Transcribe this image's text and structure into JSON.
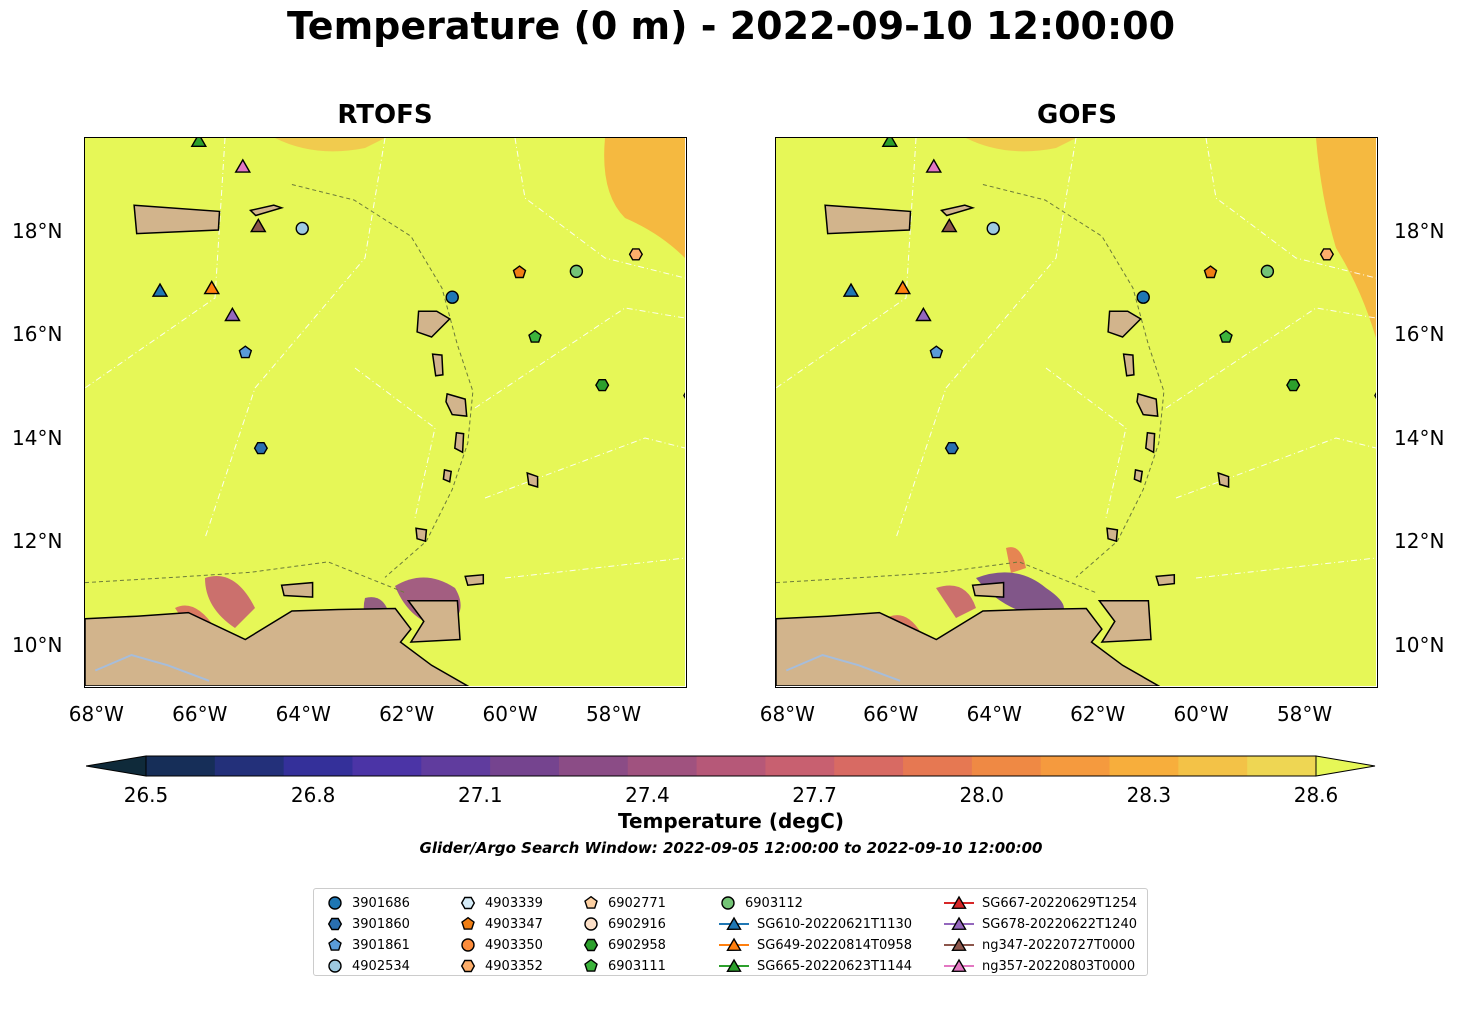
{
  "title": "Temperature (0 m) - 2022-09-10 12:00:00",
  "panels": [
    {
      "title": "RTOFS"
    },
    {
      "title": "GOFS"
    }
  ],
  "axes": {
    "x_ticks": [
      "68°W",
      "66°W",
      "64°W",
      "62°W",
      "60°W",
      "58°W"
    ],
    "y_ticks": [
      "18°N",
      "16°N",
      "14°N",
      "12°N",
      "10°N"
    ]
  },
  "colorbar": {
    "ticks": [
      "26.5",
      "26.8",
      "27.1",
      "27.4",
      "27.7",
      "28.0",
      "28.3",
      "28.6"
    ],
    "label": "Temperature (degC)",
    "colors": [
      "#0f2a3a",
      "#162e58",
      "#23307a",
      "#34309a",
      "#4b34a6",
      "#603c9e",
      "#75448f",
      "#8b4c86",
      "#a0527f",
      "#b65878",
      "#c86070",
      "#d86a63",
      "#e67852",
      "#ef8944",
      "#f59a3e",
      "#f7ae3c",
      "#f3c247",
      "#eed653",
      "#e6f757"
    ]
  },
  "search_window": "Glider/Argo Search Window: 2022-09-05 12:00:00 to 2022-09-10 12:00:00",
  "legend": [
    {
      "label": "3901686",
      "marker": "circle",
      "color": "#1f77b4"
    },
    {
      "label": "3901860",
      "marker": "hexagon",
      "color": "#2a6fb0"
    },
    {
      "label": "3901861",
      "marker": "pentagon",
      "color": "#5a9bd8"
    },
    {
      "label": "4902534",
      "marker": "circle",
      "color": "#9ecae1"
    },
    {
      "label": "4903339",
      "marker": "hexagon",
      "color": "#d6ecf8"
    },
    {
      "label": "4903347",
      "marker": "pentagon",
      "color": "#f07e14"
    },
    {
      "label": "4903350",
      "marker": "circle",
      "color": "#fd8d3c"
    },
    {
      "label": "4903352",
      "marker": "hexagon",
      "color": "#fdae6b"
    },
    {
      "label": "6902771",
      "marker": "pentagon",
      "color": "#fdd0a2"
    },
    {
      "label": "6902916",
      "marker": "circle",
      "color": "#fde0c8"
    },
    {
      "label": "6902958",
      "marker": "hexagon",
      "color": "#2ca02c"
    },
    {
      "label": "6903111",
      "marker": "pentagon",
      "color": "#3cb43c"
    },
    {
      "label": "6903112",
      "marker": "circle",
      "color": "#74c476"
    },
    {
      "label": "SG610-20220621T1130",
      "marker": "triangle",
      "color": "#1f77b4"
    },
    {
      "label": "SG649-20220814T0958",
      "marker": "triangle",
      "color": "#ff7f0e"
    },
    {
      "label": "SG665-20220623T1144",
      "marker": "triangle",
      "color": "#2ca02c"
    },
    {
      "label": "SG667-20220629T1254",
      "marker": "triangle",
      "color": "#d62728"
    },
    {
      "label": "SG678-20220622T1240",
      "marker": "triangle",
      "color": "#9467bd"
    },
    {
      "label": "ng347-20220727T0000",
      "marker": "triangle",
      "color": "#8c564b"
    },
    {
      "label": "ng357-20220803T0000",
      "marker": "triangle",
      "color": "#e377c2"
    }
  ],
  "colors": {
    "sea_surface": "#e6f757",
    "land": "#d2b48c",
    "lakes_rivers": "#a6bddb",
    "warm_patch": "#f7ae3c"
  },
  "markers": [
    {
      "label": "SG665-20220623T1144",
      "lon": -66.0,
      "lat": 19.75
    },
    {
      "label": "ng357-20220803T0000",
      "lon": -65.15,
      "lat": 19.25
    },
    {
      "label": "ng347-20220727T0000",
      "lon": -64.85,
      "lat": 18.1
    },
    {
      "label": "4902534",
      "lon": -64.0,
      "lat": 18.05
    },
    {
      "label": "SG610-20220621T1130",
      "lon": -66.75,
      "lat": 16.85
    },
    {
      "label": "SG649-20220814T0958",
      "lon": -65.75,
      "lat": 16.9
    },
    {
      "label": "SG678-20220622T1240",
      "lon": -65.35,
      "lat": 16.38
    },
    {
      "label": "3901861",
      "lon": -65.1,
      "lat": 15.65
    },
    {
      "label": "3901860",
      "lon": -64.8,
      "lat": 13.8
    },
    {
      "label": "3901686",
      "lon": -61.1,
      "lat": 16.72
    },
    {
      "label": "4903347",
      "lon": -59.8,
      "lat": 17.2
    },
    {
      "label": "6903112",
      "lon": -58.7,
      "lat": 17.22
    },
    {
      "label": "4903352",
      "lon": -57.55,
      "lat": 17.55
    },
    {
      "label": "6903111",
      "lon": -59.5,
      "lat": 15.95
    },
    {
      "label": "6902958",
      "lon": -58.2,
      "lat": 15.02
    },
    {
      "label": "4903339",
      "lon": -56.5,
      "lat": 14.82
    }
  ],
  "map_extent": {
    "lon": [
      -68.2,
      -56.6
    ],
    "lat": [
      9.2,
      19.8
    ]
  }
}
